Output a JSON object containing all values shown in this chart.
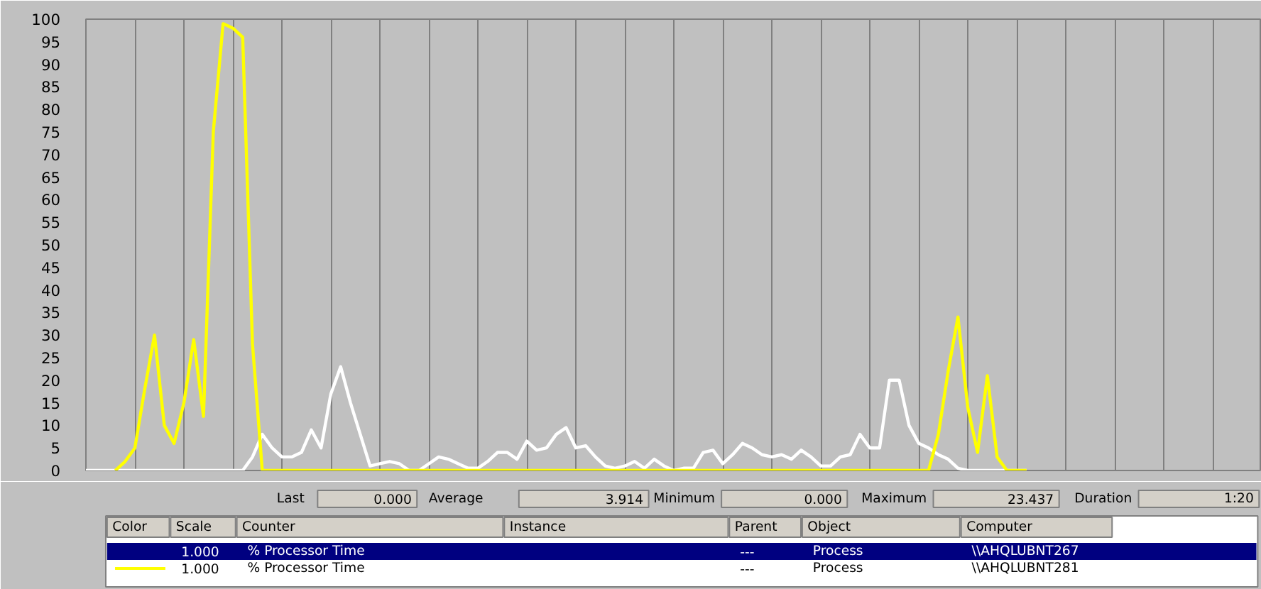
{
  "chart_data": {
    "type": "line",
    "categories": [
      null,
      null,
      null,
      null,
      null,
      null,
      null,
      null,
      null,
      null,
      null,
      null,
      null,
      null,
      null,
      null,
      null,
      null,
      null,
      null,
      null,
      null,
      null,
      null,
      null,
      null,
      null,
      null,
      null,
      null,
      null,
      null,
      null,
      null,
      null,
      null,
      null,
      null,
      null,
      null,
      null,
      null,
      null,
      null,
      null,
      null,
      null,
      null,
      null,
      null,
      null,
      null,
      null,
      null,
      null,
      null,
      null,
      null,
      null,
      null,
      null,
      null,
      null,
      null,
      null,
      null,
      null,
      null,
      null,
      null,
      null,
      null,
      null,
      null,
      null,
      null,
      null,
      null,
      null,
      null,
      null,
      null,
      null,
      null,
      null,
      null,
      null,
      null,
      null,
      null,
      null,
      null,
      null,
      null,
      null,
      null,
      null,
      null,
      null,
      null,
      null,
      null,
      null,
      null,
      null,
      null,
      null,
      null,
      null,
      null,
      null,
      null,
      null,
      null,
      null,
      null,
      null,
      null,
      null,
      null,
      null
    ],
    "series": [
      {
        "color": "#ffffff",
        "values": [
          0,
          0,
          0,
          0,
          0,
          0,
          0,
          0,
          0,
          0,
          0,
          0,
          0,
          0,
          0,
          0,
          0,
          3,
          8,
          5,
          3,
          3,
          4,
          9,
          5,
          17,
          23,
          15,
          8,
          1,
          1.5,
          2,
          1.5,
          0,
          0,
          1.5,
          3,
          2.5,
          1.5,
          0.5,
          0.5,
          2,
          4,
          4,
          2.5,
          6.5,
          4.5,
          5,
          8,
          9.5,
          5,
          5.5,
          3,
          1,
          0.5,
          1,
          2,
          0.5,
          2.5,
          1,
          0,
          0.5,
          0.5,
          4,
          4.5,
          1.5,
          3.5,
          6,
          5,
          3.5,
          3,
          3.5,
          2.5,
          4.5,
          3,
          1,
          1,
          3,
          3.5,
          8,
          5,
          5,
          20,
          20,
          10,
          6,
          5,
          3.5,
          2.5,
          0.5,
          0,
          0,
          0,
          0,
          0,
          0,
          0,
          null,
          null,
          null,
          null,
          null,
          null,
          null,
          null,
          null,
          null,
          null,
          null,
          null,
          null,
          null,
          null,
          null,
          null,
          null,
          null,
          null,
          null,
          null,
          null
        ]
      },
      {
        "color": "#ffff00",
        "values": [
          null,
          null,
          null,
          0,
          2,
          5,
          18,
          30,
          10,
          6,
          15,
          29,
          12,
          75,
          99,
          98,
          96,
          28,
          0,
          0,
          0,
          0,
          0,
          0,
          0,
          0,
          0,
          0,
          0,
          0,
          0,
          0,
          0,
          0,
          0,
          0,
          0,
          0,
          0,
          0,
          0,
          0,
          0,
          0,
          0,
          0,
          0,
          0,
          0,
          0,
          0,
          0,
          0,
          0,
          0,
          0,
          0,
          0,
          0,
          0,
          0,
          0,
          0,
          0,
          0,
          0,
          0,
          0,
          0,
          0,
          0,
          0,
          0,
          0,
          0,
          0,
          0,
          0,
          0,
          0,
          0,
          0,
          0,
          0,
          0,
          0,
          0,
          8,
          22,
          34,
          14,
          4,
          21,
          3,
          0,
          0,
          0,
          null,
          null,
          null,
          null,
          null,
          null,
          null,
          null,
          null,
          null,
          null,
          null,
          null,
          null,
          null,
          null,
          null,
          null,
          null,
          null,
          null,
          null,
          null,
          null
        ]
      }
    ],
    "ylim": [
      0,
      100
    ],
    "yticks": [
      0,
      5,
      10,
      15,
      20,
      25,
      30,
      35,
      40,
      45,
      50,
      55,
      60,
      65,
      70,
      75,
      80,
      85,
      90,
      95,
      100
    ],
    "grid": "x",
    "tick_labels": "y",
    "annotations": [
      "Last",
      "0.000",
      "Average",
      "3.914",
      "Minimum",
      "0.000",
      "Maximum",
      "23.437",
      "Duration",
      "1:20",
      "Color",
      "Scale",
      "Counter",
      "Instance",
      "Parent",
      "Object",
      "Computer",
      "1.000",
      "% Processor Time",
      "---",
      "Process",
      "\\\\AHQLUBNT267",
      "1.000",
      "% Processor Time",
      "---",
      "Process",
      "\\\\AHQLUBNT281"
    ]
  }
}
